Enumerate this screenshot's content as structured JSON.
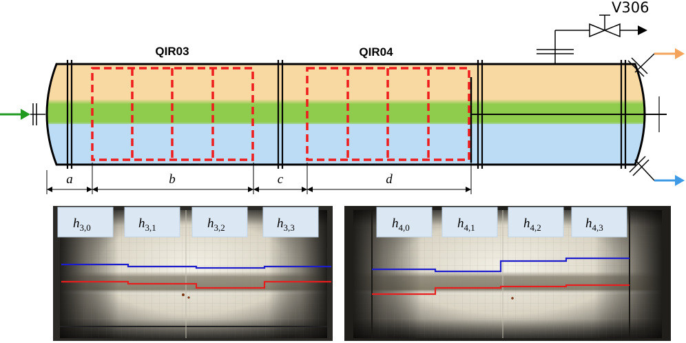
{
  "diagram": {
    "valve_label": "V306",
    "sections": [
      {
        "id": "qir03",
        "label": "QIR03"
      },
      {
        "id": "qir04",
        "label": "QIR04"
      }
    ],
    "dimensions": [
      {
        "id": "a",
        "label": "a"
      },
      {
        "id": "b",
        "label": "b"
      },
      {
        "id": "c",
        "label": "c"
      },
      {
        "id": "d",
        "label": "d"
      }
    ],
    "colors": {
      "oil_layer": "#f9d9a2",
      "emulsion_layer": "#8fcc4e",
      "water_layer": "#bcdcf6",
      "camera_frames": "#ee1c1c",
      "inlet_arrow": "#1f9a1f",
      "oil_outlet": "#f4a35b",
      "water_outlet": "#3f9ae6",
      "upper_interface_line": "#1c1ccc",
      "lower_interface_line": "#e61e1e"
    },
    "photo_left": {
      "label_sub_prefix": "3",
      "labels": [
        {
          "main": "h",
          "sub": "3,0"
        },
        {
          "main": "h",
          "sub": "3,1"
        },
        {
          "main": "h",
          "sub": "3,2"
        },
        {
          "main": "h",
          "sub": "3,3"
        }
      ]
    },
    "photo_right": {
      "label_sub_prefix": "4",
      "labels": [
        {
          "main": "h",
          "sub": "4,0"
        },
        {
          "main": "h",
          "sub": "4,1"
        },
        {
          "main": "h",
          "sub": "4,2"
        },
        {
          "main": "h",
          "sub": "4,3"
        }
      ]
    }
  }
}
